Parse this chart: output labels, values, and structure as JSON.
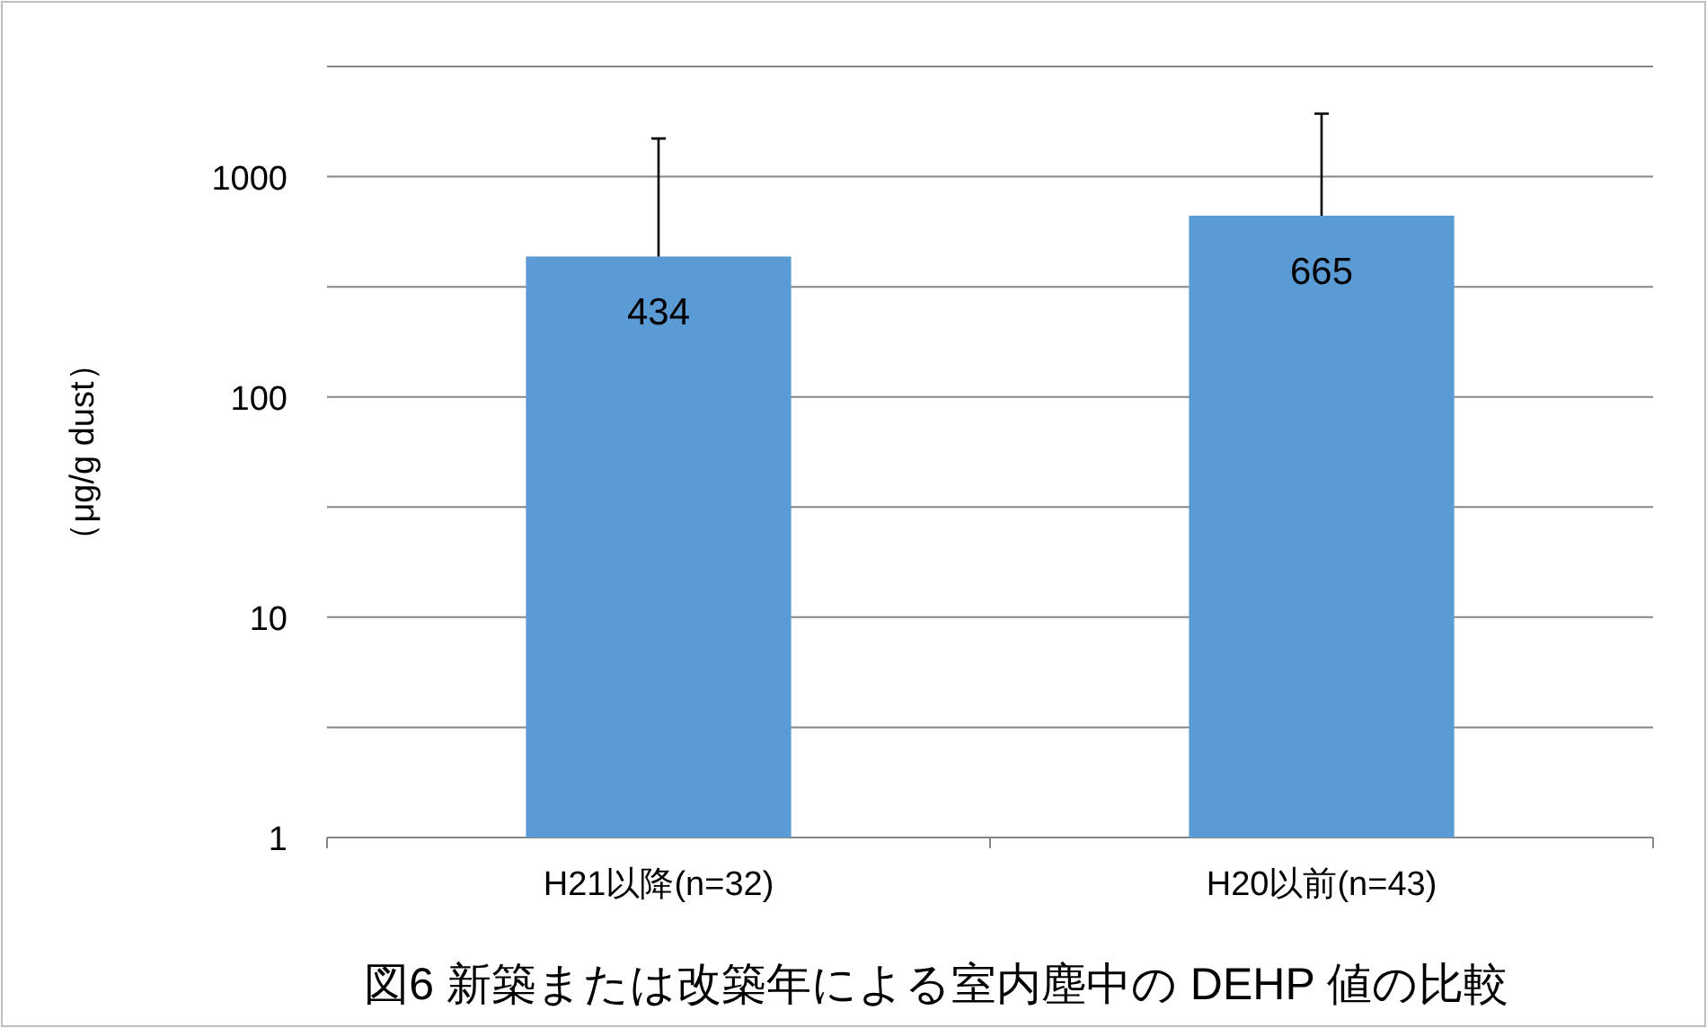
{
  "chart_data": {
    "type": "bar",
    "title": "図6  新築または改築年による室内塵中の DEHP 値の比較",
    "ylabel": "（μg/g dust）",
    "categories": [
      "H21以降(n=32)",
      "H20以前(n=43)"
    ],
    "values": [
      434,
      665
    ],
    "color": "#5b9bd5",
    "errors": [
      [
        434,
        1490
      ],
      [
        665,
        1930
      ]
    ],
    "log": true,
    "ylim": [
      1,
      3162
    ],
    "yticks": [
      1,
      {
        "value": 3.162,
        "label": null
      },
      10,
      {
        "value": 31.62,
        "label": null
      },
      100,
      {
        "value": 316.2,
        "label": null
      },
      1000,
      {
        "value": 3162,
        "label": null
      }
    ],
    "grid": "y",
    "data_labels": true
  }
}
